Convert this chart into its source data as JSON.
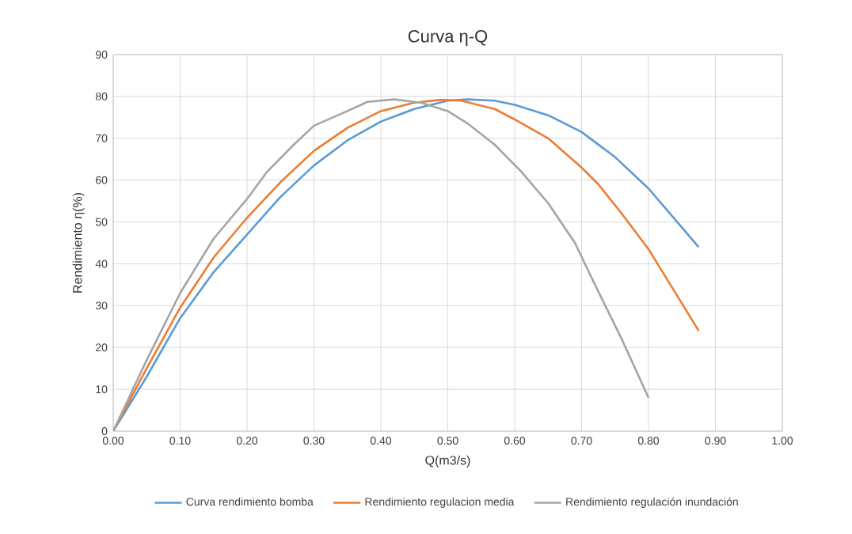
{
  "chart_data": {
    "type": "line",
    "title": "Curva η-Q",
    "xlabel": "Q(m3/s)",
    "ylabel": "Rendimiento η(%)",
    "xlim": [
      0,
      1
    ],
    "ylim": [
      0,
      90
    ],
    "xticks": [
      {
        "value": 0,
        "label": "0.00"
      },
      {
        "value": 0.1,
        "label": "0.10"
      },
      {
        "value": 0.2,
        "label": "0.20"
      },
      {
        "value": 0.3,
        "label": "0.30"
      },
      {
        "value": 0.4,
        "label": "0.40"
      },
      {
        "value": 0.5,
        "label": "0.50"
      },
      {
        "value": 0.6,
        "label": "0.60"
      },
      {
        "value": 0.7,
        "label": "0.70"
      },
      {
        "value": 0.8,
        "label": "0.80"
      },
      {
        "value": 0.9,
        "label": "0.90"
      },
      {
        "value": 1,
        "label": "1.00"
      }
    ],
    "yticks": [
      0,
      10,
      20,
      30,
      40,
      50,
      60,
      70,
      80,
      90
    ],
    "grid": true,
    "legend": "bottom",
    "marker": "none",
    "line_style": "solid",
    "series": [
      {
        "name": "Curva rendimiento bomba",
        "color": "#5b9bd5",
        "x": [
          0,
          0.05,
          0.1,
          0.15,
          0.2,
          0.25,
          0.3,
          0.35,
          0.4,
          0.45,
          0.5,
          0.53,
          0.57,
          0.6,
          0.65,
          0.7,
          0.75,
          0.8,
          0.875
        ],
        "values": [
          0,
          13,
          27,
          38,
          47,
          56,
          63.5,
          69.5,
          74,
          77,
          79,
          79.3,
          79,
          78,
          75.5,
          71.5,
          65.5,
          58,
          44
        ]
      },
      {
        "name": "Rendimiento regulacion media",
        "color": "#ed7d31",
        "x": [
          0,
          0.05,
          0.1,
          0.15,
          0.2,
          0.25,
          0.3,
          0.35,
          0.4,
          0.45,
          0.49,
          0.52,
          0.57,
          0.6,
          0.65,
          0.7,
          0.725,
          0.76,
          0.8,
          0.875
        ],
        "values": [
          0,
          15,
          29.5,
          41.5,
          51,
          59.5,
          67,
          72.5,
          76.5,
          78.5,
          79.2,
          79,
          77,
          74.5,
          70,
          63,
          59,
          52,
          43.5,
          24
        ]
      },
      {
        "name": "Rendimiento regulación inundación",
        "color": "#a5a5a5",
        "x": [
          0,
          0.05,
          0.1,
          0.15,
          0.2,
          0.23,
          0.27,
          0.3,
          0.35,
          0.38,
          0.42,
          0.46,
          0.5,
          0.53,
          0.57,
          0.61,
          0.65,
          0.69,
          0.72,
          0.76,
          0.8
        ],
        "values": [
          0,
          17,
          33,
          46,
          55.5,
          62,
          68.5,
          73,
          76.5,
          78.7,
          79.3,
          78.5,
          76.5,
          73.5,
          68.5,
          62,
          54.5,
          45,
          35,
          22,
          8
        ]
      }
    ]
  }
}
